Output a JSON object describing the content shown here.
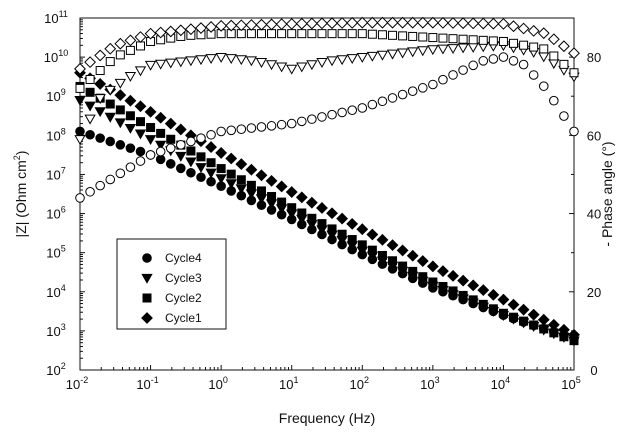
{
  "chart_data": {
    "type": "scatter",
    "xlabel": "Frequency (Hz)",
    "ylabel_left": "|Z| (Ohm cm",
    "ylabel_left_sup": "2",
    "ylabel_left_close": ")",
    "ylabel_right": "- Phase angle (°)",
    "x_scale": "log",
    "y_left_scale": "log",
    "xlim": [
      0.01,
      100000
    ],
    "ylim_left": [
      100,
      100000000000
    ],
    "ylim_right": [
      0,
      90
    ],
    "x_ticks": [
      {
        "base": "10",
        "exp": "-2"
      },
      {
        "base": "10",
        "exp": "-1"
      },
      {
        "base": "10",
        "exp": "0"
      },
      {
        "base": "10",
        "exp": "1"
      },
      {
        "base": "10",
        "exp": "2"
      },
      {
        "base": "10",
        "exp": "3"
      },
      {
        "base": "10",
        "exp": "4"
      },
      {
        "base": "10",
        "exp": "5"
      }
    ],
    "y_left_ticks": [
      {
        "base": "10",
        "exp": "2"
      },
      {
        "base": "10",
        "exp": "3"
      },
      {
        "base": "10",
        "exp": "4"
      },
      {
        "base": "10",
        "exp": "5"
      },
      {
        "base": "10",
        "exp": "6"
      },
      {
        "base": "10",
        "exp": "7"
      },
      {
        "base": "10",
        "exp": "8"
      },
      {
        "base": "10",
        "exp": "9"
      },
      {
        "base": "10",
        "exp": "10"
      },
      {
        "base": "10",
        "exp": "11"
      }
    ],
    "y_right_ticks": [
      "0",
      "20",
      "40",
      "60",
      "80"
    ],
    "legend": {
      "placement": "lower-left",
      "entries": [
        "Cycle4",
        "Cycle3",
        "Cycle2",
        "Cycle1"
      ]
    },
    "grid": false,
    "series": [
      {
        "name": "Cycle4",
        "marker": "circle",
        "fill": "filled",
        "axis": "left",
        "log10_x_start": -2,
        "log10_x_end": 5,
        "points_per_decade": 7,
        "modulus_anchors": [
          [
            -2,
            8.1
          ],
          [
            -1,
            7.5
          ],
          [
            0,
            6.7
          ],
          [
            1,
            5.85
          ],
          [
            2,
            4.95
          ],
          [
            3,
            4.1
          ],
          [
            4,
            3.4
          ],
          [
            5,
            2.8
          ]
        ]
      },
      {
        "name": "Cycle3",
        "marker": "triangle-down",
        "fill": "filled",
        "axis": "left",
        "log10_x_start": -2,
        "log10_x_end": 5,
        "points_per_decade": 7,
        "modulus_anchors": [
          [
            -2,
            8.9
          ],
          [
            -1,
            7.9
          ],
          [
            0,
            6.9
          ],
          [
            1,
            6.0
          ],
          [
            2,
            5.05
          ],
          [
            3,
            4.15
          ],
          [
            4,
            3.4
          ],
          [
            5,
            2.75
          ]
        ]
      },
      {
        "name": "Cycle2",
        "marker": "square",
        "fill": "filled",
        "axis": "left",
        "log10_x_start": -2,
        "log10_x_end": 5,
        "points_per_decade": 7,
        "modulus_anchors": [
          [
            -2,
            9.25
          ],
          [
            -1,
            8.2
          ],
          [
            0,
            7.15
          ],
          [
            1,
            6.15
          ],
          [
            2,
            5.2
          ],
          [
            3,
            4.25
          ],
          [
            4,
            3.45
          ],
          [
            5,
            2.75
          ]
        ]
      },
      {
        "name": "Cycle1",
        "marker": "diamond",
        "fill": "filled",
        "axis": "left",
        "log10_x_start": -2,
        "log10_x_end": 5,
        "points_per_decade": 7,
        "modulus_anchors": [
          [
            -2,
            9.6
          ],
          [
            -1,
            8.6
          ],
          [
            0,
            7.55
          ],
          [
            1,
            6.55
          ],
          [
            2,
            5.6
          ],
          [
            3,
            4.65
          ],
          [
            4,
            3.8
          ],
          [
            5,
            2.9
          ]
        ]
      },
      {
        "name": "Cycle4",
        "marker": "circle",
        "fill": "open",
        "axis": "right",
        "log10_x_start": -2,
        "log10_x_end": 5,
        "points_per_decade": 7,
        "phase_anchors": [
          [
            -2,
            44
          ],
          [
            -1,
            55
          ],
          [
            0,
            61
          ],
          [
            1,
            63
          ],
          [
            2,
            67
          ],
          [
            3,
            73
          ],
          [
            3.7,
            79
          ],
          [
            4,
            80
          ],
          [
            4.3,
            78
          ],
          [
            4.6,
            72
          ],
          [
            5,
            61
          ]
        ]
      },
      {
        "name": "Cycle3",
        "marker": "triangle-down",
        "fill": "open",
        "axis": "right",
        "log10_x_start": -2,
        "log10_x_end": 5,
        "points_per_decade": 7,
        "phase_anchors": [
          [
            -2,
            59
          ],
          [
            -1.7,
            70
          ],
          [
            -1.3,
            75
          ],
          [
            -1,
            78
          ],
          [
            -0.5,
            79
          ],
          [
            0,
            80
          ],
          [
            0.5,
            79
          ],
          [
            1,
            77
          ],
          [
            1.5,
            79
          ],
          [
            2,
            80
          ],
          [
            3,
            82
          ],
          [
            4,
            83
          ],
          [
            4.5,
            81
          ],
          [
            5,
            75
          ]
        ]
      },
      {
        "name": "Cycle2",
        "marker": "square",
        "fill": "open",
        "axis": "right",
        "log10_x_start": -2,
        "log10_x_end": 5,
        "points_per_decade": 7,
        "phase_anchors": [
          [
            -2,
            72
          ],
          [
            -1.5,
            80
          ],
          [
            -1,
            84
          ],
          [
            -0.5,
            85.5
          ],
          [
            0,
            86
          ],
          [
            1,
            86
          ],
          [
            2,
            86
          ],
          [
            3,
            85
          ],
          [
            4,
            84
          ],
          [
            4.6,
            82
          ],
          [
            5,
            76
          ]
        ]
      },
      {
        "name": "Cycle1",
        "marker": "diamond",
        "fill": "open",
        "axis": "right",
        "log10_x_start": -2,
        "log10_x_end": 5,
        "points_per_decade": 7,
        "phase_anchors": [
          [
            -2,
            77
          ],
          [
            -1.5,
            83
          ],
          [
            -1,
            86
          ],
          [
            -0.5,
            87
          ],
          [
            0,
            88
          ],
          [
            1,
            88.5
          ],
          [
            2,
            88.8
          ],
          [
            3,
            88.8
          ],
          [
            4,
            88.5
          ],
          [
            4.6,
            86
          ],
          [
            5,
            81
          ]
        ]
      }
    ]
  }
}
